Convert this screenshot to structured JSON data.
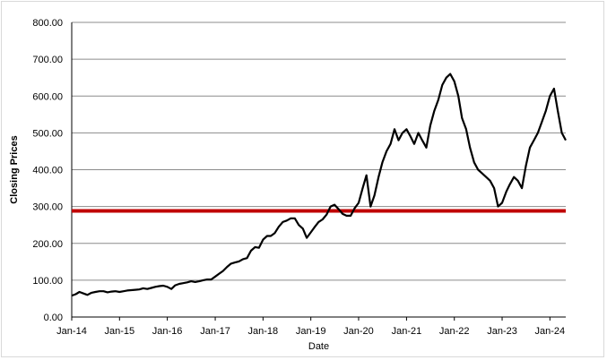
{
  "chart_data": {
    "type": "line",
    "title": "",
    "xlabel": "Date",
    "ylabel": "Closing Prices",
    "ylim": [
      0,
      800
    ],
    "xlim": [
      "2014-01-01",
      "2024-05-01"
    ],
    "y_ticks": [
      "0.00",
      "100.00",
      "200.00",
      "300.00",
      "400.00",
      "500.00",
      "600.00",
      "700.00",
      "800.00"
    ],
    "x_ticks": [
      "Jan-14",
      "Jan-15",
      "Jan-16",
      "Jan-17",
      "Jan-18",
      "Jan-19",
      "Jan-20",
      "Jan-21",
      "Jan-22",
      "Jan-23",
      "Jan-24"
    ],
    "grid": "horizontal",
    "legend": "none",
    "series": [
      {
        "color": "#000000",
        "points": [
          [
            "2014-01-01",
            58
          ],
          [
            "2014-02-01",
            62
          ],
          [
            "2014-03-01",
            68
          ],
          [
            "2014-04-01",
            64
          ],
          [
            "2014-05-01",
            60
          ],
          [
            "2014-06-01",
            66
          ],
          [
            "2014-07-01",
            68
          ],
          [
            "2014-08-01",
            70
          ],
          [
            "2014-09-01",
            70
          ],
          [
            "2014-10-01",
            67
          ],
          [
            "2014-11-01",
            69
          ],
          [
            "2014-12-01",
            70
          ],
          [
            "2015-01-01",
            68
          ],
          [
            "2015-02-01",
            70
          ],
          [
            "2015-03-01",
            72
          ],
          [
            "2015-04-01",
            73
          ],
          [
            "2015-05-01",
            74
          ],
          [
            "2015-06-01",
            75
          ],
          [
            "2015-07-01",
            78
          ],
          [
            "2015-08-01",
            76
          ],
          [
            "2015-09-01",
            79
          ],
          [
            "2015-10-01",
            82
          ],
          [
            "2015-11-01",
            84
          ],
          [
            "2015-12-01",
            85
          ],
          [
            "2016-01-01",
            82
          ],
          [
            "2016-02-01",
            76
          ],
          [
            "2016-03-01",
            86
          ],
          [
            "2016-04-01",
            90
          ],
          [
            "2016-05-01",
            92
          ],
          [
            "2016-06-01",
            94
          ],
          [
            "2016-07-01",
            97
          ],
          [
            "2016-08-01",
            95
          ],
          [
            "2016-09-01",
            97
          ],
          [
            "2016-10-01",
            100
          ],
          [
            "2016-11-01",
            102
          ],
          [
            "2016-12-01",
            102
          ],
          [
            "2017-01-01",
            110
          ],
          [
            "2017-02-01",
            118
          ],
          [
            "2017-03-01",
            125
          ],
          [
            "2017-04-01",
            136
          ],
          [
            "2017-05-01",
            145
          ],
          [
            "2017-06-01",
            148
          ],
          [
            "2017-07-01",
            151
          ],
          [
            "2017-08-01",
            157
          ],
          [
            "2017-09-01",
            160
          ],
          [
            "2017-10-01",
            180
          ],
          [
            "2017-11-01",
            190
          ],
          [
            "2017-12-01",
            188
          ],
          [
            "2018-01-01",
            210
          ],
          [
            "2018-02-01",
            220
          ],
          [
            "2018-03-01",
            220
          ],
          [
            "2018-04-01",
            228
          ],
          [
            "2018-05-01",
            245
          ],
          [
            "2018-06-01",
            258
          ],
          [
            "2018-07-01",
            262
          ],
          [
            "2018-08-01",
            268
          ],
          [
            "2018-09-01",
            268
          ],
          [
            "2018-10-01",
            250
          ],
          [
            "2018-11-01",
            240
          ],
          [
            "2018-12-01",
            215
          ],
          [
            "2019-01-01",
            230
          ],
          [
            "2019-02-01",
            245
          ],
          [
            "2019-03-01",
            258
          ],
          [
            "2019-04-01",
            265
          ],
          [
            "2019-05-01",
            278
          ],
          [
            "2019-06-01",
            300
          ],
          [
            "2019-07-01",
            305
          ],
          [
            "2019-08-01",
            293
          ],
          [
            "2019-09-01",
            280
          ],
          [
            "2019-10-01",
            275
          ],
          [
            "2019-11-01",
            275
          ],
          [
            "2019-12-01",
            295
          ],
          [
            "2020-01-01",
            310
          ],
          [
            "2020-02-01",
            350
          ],
          [
            "2020-03-01",
            385
          ],
          [
            "2020-04-01",
            300
          ],
          [
            "2020-05-01",
            330
          ],
          [
            "2020-06-01",
            380
          ],
          [
            "2020-07-01",
            420
          ],
          [
            "2020-08-01",
            450
          ],
          [
            "2020-09-01",
            470
          ],
          [
            "2020-10-01",
            510
          ],
          [
            "2020-11-01",
            480
          ],
          [
            "2020-12-01",
            500
          ],
          [
            "2021-01-01",
            510
          ],
          [
            "2021-02-01",
            490
          ],
          [
            "2021-03-01",
            470
          ],
          [
            "2021-04-01",
            500
          ],
          [
            "2021-05-01",
            480
          ],
          [
            "2021-06-01",
            460
          ],
          [
            "2021-07-01",
            520
          ],
          [
            "2021-08-01",
            560
          ],
          [
            "2021-09-01",
            590
          ],
          [
            "2021-10-01",
            630
          ],
          [
            "2021-11-01",
            650
          ],
          [
            "2021-12-01",
            660
          ],
          [
            "2022-01-01",
            640
          ],
          [
            "2022-02-01",
            600
          ],
          [
            "2022-03-01",
            540
          ],
          [
            "2022-04-01",
            510
          ],
          [
            "2022-05-01",
            460
          ],
          [
            "2022-06-01",
            420
          ],
          [
            "2022-07-01",
            400
          ],
          [
            "2022-08-01",
            390
          ],
          [
            "2022-09-01",
            380
          ],
          [
            "2022-10-01",
            370
          ],
          [
            "2022-11-01",
            350
          ],
          [
            "2022-12-01",
            300
          ],
          [
            "2023-01-01",
            310
          ],
          [
            "2023-02-01",
            340
          ],
          [
            "2023-03-01",
            360
          ],
          [
            "2023-04-01",
            380
          ],
          [
            "2023-05-01",
            370
          ],
          [
            "2023-06-01",
            350
          ],
          [
            "2023-07-01",
            410
          ],
          [
            "2023-08-01",
            460
          ],
          [
            "2023-09-01",
            480
          ],
          [
            "2023-10-01",
            500
          ],
          [
            "2023-11-01",
            530
          ],
          [
            "2023-12-01",
            560
          ],
          [
            "2024-01-01",
            600
          ],
          [
            "2024-02-01",
            620
          ],
          [
            "2024-03-01",
            560
          ],
          [
            "2024-04-01",
            500
          ],
          [
            "2024-05-01",
            480
          ]
        ]
      }
    ],
    "reference_line": {
      "value": 288,
      "color": "#c00000"
    }
  }
}
